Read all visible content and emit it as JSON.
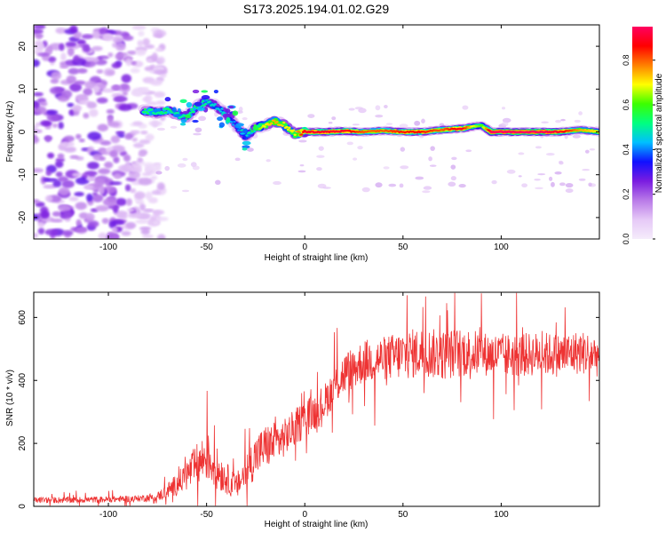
{
  "figure": {
    "title": "S173.2025.194.01.02.G29"
  },
  "chart_data": [
    {
      "type": "heatmap",
      "title": "S173.2025.194.01.02.G29",
      "xlabel": "Height of straight line (km)",
      "ylabel": "Frequency (Hz)",
      "xlim": [
        -138,
        150
      ],
      "ylim": [
        -25,
        25
      ],
      "xticks": [
        -100,
        -50,
        0,
        50,
        100
      ],
      "yticks": [
        -20,
        -10,
        0,
        10,
        20
      ],
      "colorbar": {
        "label": "Normalized spectral amplitude",
        "range": [
          0,
          0.95
        ],
        "ticks": [
          0.0,
          0.2,
          0.4,
          0.6,
          0.8
        ],
        "colormap": [
          "#f5ecfb",
          "#e6c9f7",
          "#b97ae8",
          "#7a1ce0",
          "#1010ff",
          "#00bfff",
          "#00ff80",
          "#3cff00",
          "#ffff00",
          "#ff8000",
          "#ff0000",
          "#ff0060"
        ]
      },
      "noise_region": {
        "x": [
          -138,
          -72
        ],
        "freq": [
          -25,
          25
        ]
      },
      "ridge": {
        "x": [
          -82,
          -75,
          -70,
          -65,
          -60,
          -55,
          -50,
          -45,
          -40,
          -35,
          -30,
          -25,
          -20,
          -15,
          -10,
          -5,
          0,
          10,
          20,
          30,
          40,
          50,
          60,
          70,
          80,
          85,
          90,
          95,
          100,
          110,
          120,
          130,
          140,
          150
        ],
        "freq": [
          5,
          4.5,
          5,
          4,
          3.5,
          6,
          7,
          6,
          4,
          1.5,
          -1,
          1,
          1.5,
          2.5,
          1.5,
          -0.5,
          0,
          0,
          0.2,
          0,
          0.3,
          0,
          0,
          0.5,
          0.8,
          1.2,
          1.5,
          0,
          0,
          0,
          0,
          0,
          0.5,
          0
        ],
        "amplitude": [
          0.55,
          0.5,
          0.55,
          0.5,
          0.5,
          0.55,
          0.5,
          0.45,
          0.45,
          0.4,
          0.45,
          0.6,
          0.7,
          0.75,
          0.7,
          0.7,
          0.9,
          0.9,
          0.9,
          0.8,
          0.8,
          0.85,
          0.85,
          0.8,
          0.9,
          0.7,
          0.6,
          0.95,
          0.95,
          0.95,
          0.95,
          0.9,
          0.75,
          0.7
        ]
      }
    },
    {
      "type": "line",
      "xlabel": "Height of straight line (km)",
      "ylabel": "SNR (10 * v/v)",
      "xlim": [
        -138,
        150
      ],
      "ylim": [
        0,
        680
      ],
      "xticks": [
        -100,
        -50,
        0,
        50,
        100
      ],
      "yticks": [
        0,
        200,
        400,
        600
      ],
      "color": "#ee3333",
      "series": [
        {
          "x": [
            -138,
            -120,
            -100,
            -85,
            -75,
            -70,
            -65,
            -60,
            -55,
            -50,
            -45,
            -40,
            -35,
            -30,
            -25,
            -20,
            -15,
            -10,
            -5,
            0,
            5,
            10,
            15,
            20,
            25,
            30,
            40,
            50,
            60,
            70,
            80,
            90,
            100,
            110,
            120,
            130,
            140,
            150
          ],
          "y": [
            20,
            20,
            22,
            25,
            30,
            50,
            70,
            100,
            130,
            160,
            120,
            90,
            60,
            110,
            160,
            190,
            200,
            220,
            250,
            280,
            300,
            330,
            380,
            420,
            440,
            460,
            470,
            480,
            490,
            480,
            490,
            485,
            480,
            480,
            485,
            480,
            490,
            480
          ],
          "spread": [
            10,
            10,
            10,
            10,
            15,
            25,
            35,
            50,
            70,
            80,
            70,
            50,
            40,
            60,
            70,
            70,
            70,
            60,
            60,
            60,
            60,
            60,
            60,
            70,
            70,
            70,
            70,
            80,
            80,
            80,
            80,
            70,
            70,
            70,
            70,
            70,
            70,
            70
          ]
        }
      ]
    }
  ]
}
